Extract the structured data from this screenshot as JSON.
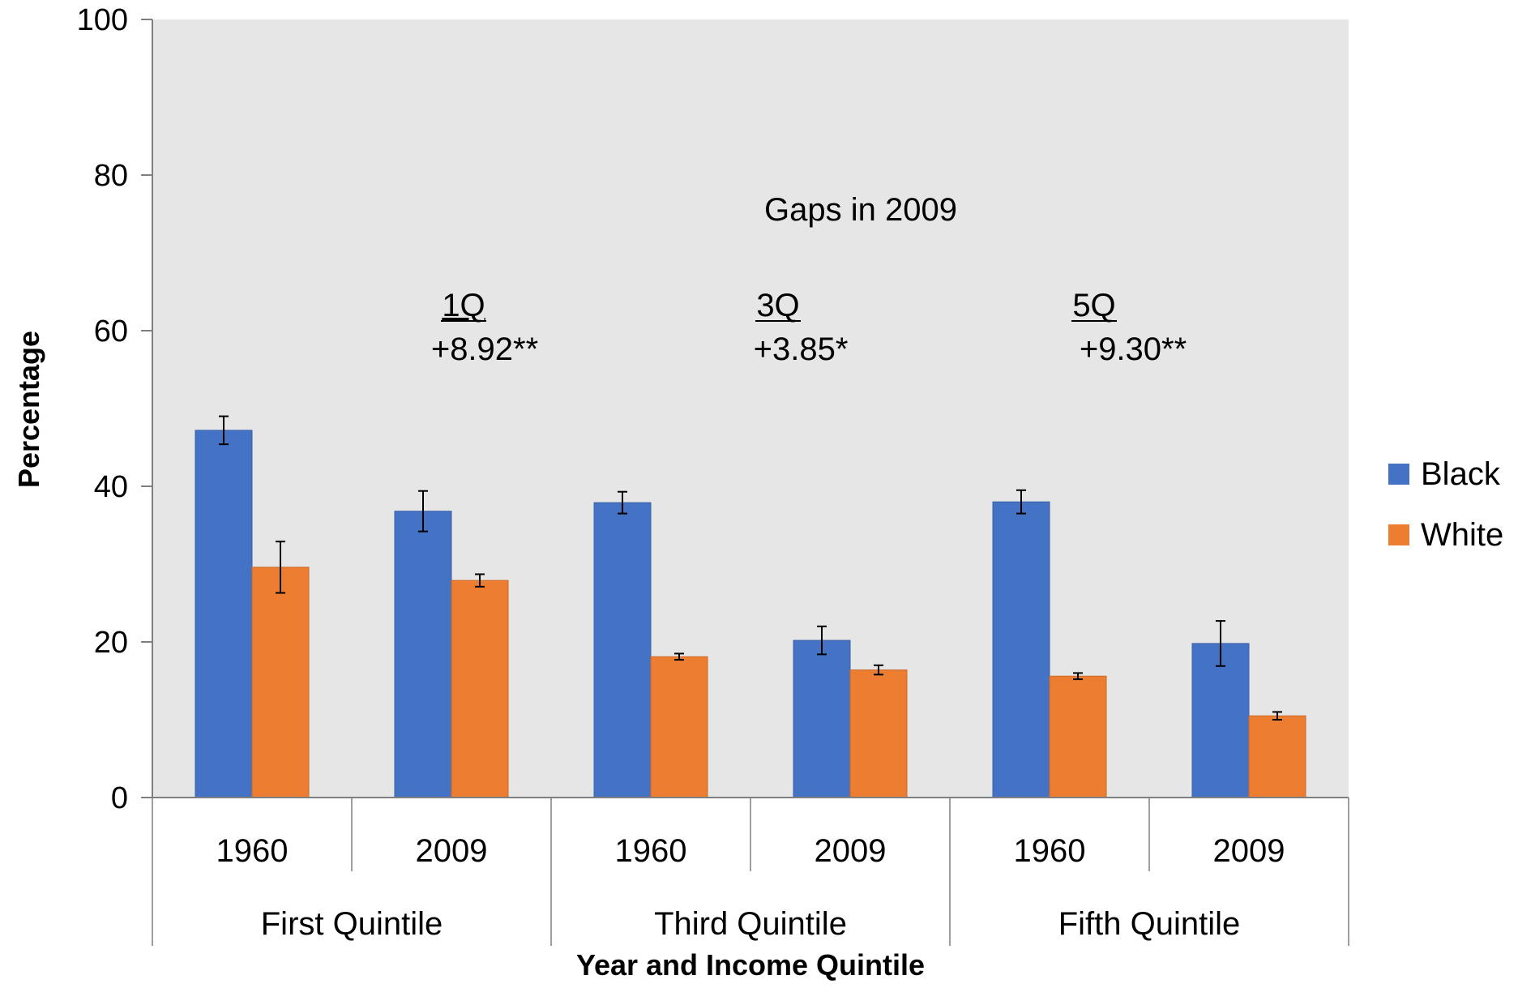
{
  "chart_data": {
    "type": "bar",
    "title": "",
    "xlabel": "Year and Income Quintile",
    "ylabel": "Percentage",
    "ylim": [
      0,
      100
    ],
    "yticks": [
      0,
      20,
      40,
      60,
      80,
      100
    ],
    "grid": false,
    "legend_position": "right",
    "categories": [
      {
        "year": "1960",
        "group": "First Quintile"
      },
      {
        "year": "2009",
        "group": "First Quintile"
      },
      {
        "year": "1960",
        "group": "Third Quintile"
      },
      {
        "year": "2009",
        "group": "Third Quintile"
      },
      {
        "year": "1960",
        "group": "Fifth Quintile"
      },
      {
        "year": "2009",
        "group": "Fifth Quintile"
      }
    ],
    "groups": [
      "First Quintile",
      "Third Quintile",
      "Fifth Quintile"
    ],
    "series": [
      {
        "name": "Black",
        "color": "#4472C4",
        "values": [
          47.2,
          36.8,
          37.9,
          20.2,
          38.0,
          19.8
        ],
        "error": [
          1.8,
          2.6,
          1.4,
          1.8,
          1.5,
          2.9
        ]
      },
      {
        "name": "White",
        "color": "#ED7D31",
        "values": [
          29.6,
          27.9,
          18.1,
          16.4,
          15.6,
          10.5
        ],
        "error": [
          3.3,
          0.8,
          0.4,
          0.6,
          0.4,
          0.5
        ]
      }
    ],
    "annotations": {
      "heading": "Gaps in 2009",
      "gaps": [
        {
          "label": "1Q",
          "value": "+8.92**"
        },
        {
          "label": "3Q",
          "value": "+3.85*"
        },
        {
          "label": "5Q",
          "value": "+9.30**"
        }
      ]
    },
    "colors": {
      "plot_background": "#E7E6E6",
      "axis": "#7F7F7F"
    }
  }
}
